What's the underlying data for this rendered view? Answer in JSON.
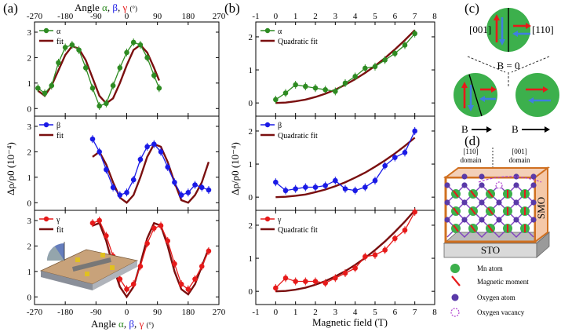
{
  "panels": {
    "a": "(a)",
    "b": "(b)",
    "c": "(c)",
    "d": "(d)"
  },
  "chart_data": [
    {
      "type": "line",
      "panel": "(a)",
      "top_axis_label": "Angle",
      "bottom_axis_label": "Angle",
      "axis_symbols": [
        "α",
        "β",
        "γ"
      ],
      "axis_sep": ", ",
      "axis_unit": "(°)",
      "ylabel": "Δρ/ρ0 (10⁻⁴)",
      "xlim": [
        -270,
        270
      ],
      "xticks": [
        -270,
        -180,
        -90,
        0,
        90,
        180,
        270
      ],
      "ylim": [
        -0.3,
        3.4
      ],
      "yticks": [
        0,
        1,
        2,
        3
      ],
      "subplots": [
        {
          "name": "α",
          "color": "#2e8b22",
          "fit_label": "fit",
          "xrange": [
            -260,
            95
          ],
          "x": [
            -260,
            -240,
            -220,
            -200,
            -180,
            -160,
            -140,
            -120,
            -100,
            -80,
            -60,
            -40,
            -20,
            0,
            20,
            40,
            60,
            80,
            95
          ],
          "data": [
            0.8,
            0.6,
            0.9,
            1.8,
            2.4,
            2.5,
            2.3,
            1.6,
            0.8,
            0.1,
            0.2,
            0.9,
            1.6,
            2.2,
            2.6,
            2.5,
            2.0,
            1.3,
            0.8
          ],
          "fit": [
            0.7,
            0.5,
            0.9,
            1.5,
            2.1,
            2.45,
            2.35,
            1.9,
            1.2,
            0.5,
            0.2,
            0.4,
            1.0,
            1.7,
            2.3,
            2.5,
            2.2,
            1.6,
            1.1
          ]
        },
        {
          "name": "β",
          "color": "#1a1ae6",
          "fit_label": "fit",
          "xrange": [
            -100,
            250
          ],
          "x": [
            -100,
            -80,
            -60,
            -40,
            -20,
            0,
            20,
            40,
            60,
            80,
            100,
            120,
            140,
            160,
            180,
            200,
            220,
            240
          ],
          "data": [
            2.5,
            2.0,
            1.3,
            0.6,
            0.3,
            0.4,
            0.9,
            1.7,
            2.2,
            2.3,
            2.0,
            1.4,
            0.8,
            0.3,
            0.4,
            0.7,
            0.6,
            0.5
          ],
          "fit": [
            1.8,
            2.0,
            1.5,
            0.8,
            0.2,
            0.0,
            0.3,
            1.0,
            1.8,
            2.3,
            2.2,
            1.6,
            0.8,
            0.1,
            0.0,
            0.3,
            0.8,
            1.6
          ]
        },
        {
          "name": "γ",
          "color": "#e61a1a",
          "fit_label": "fit",
          "xrange": [
            -100,
            250
          ],
          "x": [
            -100,
            -80,
            -60,
            -40,
            -20,
            0,
            20,
            40,
            60,
            80,
            100,
            120,
            140,
            160,
            180,
            200,
            220,
            240
          ],
          "data": [
            2.9,
            3.0,
            2.4,
            1.6,
            0.7,
            0.3,
            0.5,
            1.2,
            2.1,
            2.7,
            2.8,
            2.2,
            1.3,
            0.5,
            0.3,
            0.7,
            1.2,
            1.8
          ],
          "fit": [
            2.8,
            2.9,
            2.2,
            1.2,
            0.4,
            0.0,
            0.4,
            1.3,
            2.3,
            2.9,
            2.8,
            2.0,
            1.0,
            0.3,
            0.1,
            0.5,
            1.2,
            1.9
          ]
        }
      ]
    },
    {
      "type": "line",
      "panel": "(b)",
      "xlabel": "Magnetic field (T)",
      "ylabel": "Δρ/ρ0 (10⁻⁴)",
      "xlim": [
        -1,
        8
      ],
      "xticks": [
        -1,
        0,
        1,
        2,
        3,
        4,
        5,
        6,
        7,
        8
      ],
      "ylim": [
        -0.4,
        2.45
      ],
      "yticks": [
        0,
        1,
        2
      ],
      "subplots": [
        {
          "name": "α",
          "color": "#2e8b22",
          "fit_label": "Quadratic fit",
          "x": [
            0,
            0.5,
            1,
            1.5,
            2,
            2.5,
            3,
            3.5,
            4,
            4.5,
            5,
            5.5,
            6,
            6.5,
            7
          ],
          "data": [
            0.1,
            0.3,
            0.55,
            0.5,
            0.45,
            0.4,
            0.35,
            0.6,
            0.8,
            1.05,
            1.1,
            1.3,
            1.5,
            1.75,
            2.1
          ],
          "fit": [
            0.0,
            0.01,
            0.05,
            0.1,
            0.18,
            0.28,
            0.4,
            0.55,
            0.72,
            0.91,
            1.12,
            1.36,
            1.62,
            1.9,
            2.2
          ]
        },
        {
          "name": "β",
          "color": "#1a1ae6",
          "fit_label": "Quadratic fit",
          "x": [
            0,
            0.5,
            1,
            1.5,
            2,
            2.5,
            3,
            3.5,
            4,
            4.5,
            5,
            5.5,
            6,
            6.5,
            7
          ],
          "data": [
            0.45,
            0.2,
            0.25,
            0.3,
            0.3,
            0.35,
            0.5,
            0.25,
            0.2,
            0.3,
            0.5,
            0.95,
            1.2,
            1.35,
            2.0
          ],
          "fit": [
            0.0,
            0.01,
            0.04,
            0.08,
            0.15,
            0.23,
            0.33,
            0.45,
            0.59,
            0.74,
            0.92,
            1.11,
            1.32,
            1.55,
            1.8
          ]
        },
        {
          "name": "γ",
          "color": "#e61a1a",
          "fit_label": "Quadratic fit",
          "x": [
            0,
            0.5,
            1,
            1.5,
            2,
            2.5,
            3,
            3.5,
            4,
            4.5,
            5,
            5.5,
            6,
            6.5,
            7
          ],
          "data": [
            0.1,
            0.4,
            0.3,
            0.3,
            0.3,
            0.25,
            0.4,
            0.55,
            0.7,
            1.05,
            1.1,
            1.25,
            1.6,
            1.85,
            2.4
          ],
          "fit": [
            0.0,
            0.01,
            0.05,
            0.11,
            0.2,
            0.31,
            0.45,
            0.61,
            0.8,
            1.01,
            1.25,
            1.51,
            1.8,
            2.11,
            2.45
          ]
        }
      ]
    }
  ],
  "panel_c": {
    "dir_left": "[001]",
    "dir_right": "[110]",
    "b_zero": "B = 0",
    "b_label": "B"
  },
  "panel_d": {
    "domain1": "[110]",
    "domain1_sub": "domain",
    "domain2": "[001]",
    "domain2_sub": "domain",
    "substrate": "STO",
    "film": "SMO",
    "legend": [
      "Mn atom",
      "Magnetic moment",
      "Oxygen atom",
      "Oxygen vacancy"
    ]
  }
}
